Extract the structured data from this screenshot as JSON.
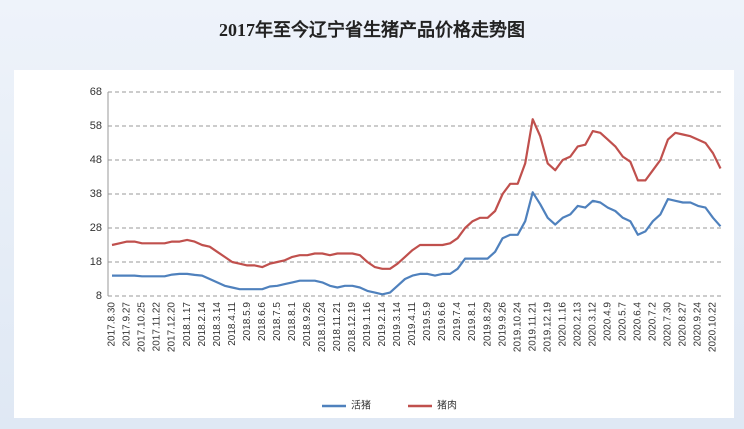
{
  "chart_data": {
    "type": "line",
    "title": "2017年至今辽宁省生猪产品价格走势图",
    "categories": [
      "2017.8.30",
      null,
      "2017.9.27",
      null,
      "2017.10.25",
      null,
      "2017.11.22",
      null,
      "2017.12.20",
      null,
      "2018.1.17",
      null,
      "2018.2.14",
      null,
      "2018.3.14",
      null,
      "2018.4.11",
      null,
      "2018.5.9",
      null,
      "2018.6.6",
      null,
      "2018.7.5",
      null,
      "2018.8.1",
      null,
      "2018.9.26",
      null,
      "2018.10.24",
      null,
      "2018.11.21",
      null,
      "2018.12.19",
      null,
      "2019.1.16",
      null,
      "2019.2.14",
      null,
      "2019.3.14",
      null,
      "2019.4.11",
      null,
      "2019.5.9",
      null,
      "2019.6.6",
      null,
      "2019.7.4",
      null,
      "2019.8.1",
      null,
      "2019.8.29",
      null,
      "2019.9.26",
      null,
      "2019.10.24",
      null,
      "2019.11.21",
      null,
      "2019.12.19",
      null,
      "2020.1.16",
      null,
      "2020.2.13",
      null,
      "2020.3.12",
      null,
      "2020.4.9",
      null,
      "2020.5.7",
      null,
      "2020.6.4",
      null,
      "2020.7.2",
      null,
      "2020.7.30",
      null,
      "2020.8.27",
      null,
      "2020.9.24",
      null,
      "2020.10.22",
      null
    ],
    "series": [
      {
        "name": "活猪",
        "color": "#4f81bd",
        "values": [
          14,
          14,
          14,
          14,
          13.8,
          13.8,
          13.8,
          13.8,
          14.3,
          14.5,
          14.5,
          14.2,
          14,
          13,
          12,
          11,
          10.5,
          10,
          10,
          10,
          10,
          10.8,
          11,
          11.5,
          12,
          12.5,
          12.5,
          12.5,
          12,
          11,
          10.5,
          11,
          11,
          10.5,
          9.5,
          9,
          8.5,
          9,
          11,
          13,
          14,
          14.5,
          14.5,
          14,
          14.5,
          14.5,
          16,
          19,
          19,
          19,
          19,
          21,
          25,
          26,
          26,
          30,
          38.5,
          35,
          31,
          29,
          31,
          32,
          34.5,
          34,
          36,
          35.5,
          34,
          33,
          31,
          30,
          26,
          27,
          30,
          32,
          36.5,
          36,
          35.5,
          35.5,
          34.5,
          34,
          31,
          28.5
        ]
      },
      {
        "name": "猪肉",
        "color": "#c0504d",
        "values": [
          23,
          23.5,
          24,
          24,
          23.5,
          23.5,
          23.5,
          23.5,
          24,
          24,
          24.5,
          24,
          23,
          22.5,
          21,
          19.5,
          18,
          17.5,
          17,
          17,
          16.5,
          17.5,
          18,
          18.5,
          19.5,
          20,
          20,
          20.5,
          20.5,
          20,
          20.5,
          20.5,
          20.5,
          20,
          18,
          16.5,
          16,
          16,
          17.5,
          19.5,
          21.5,
          23,
          23,
          23,
          23,
          23.5,
          25,
          28,
          30,
          31,
          31,
          33,
          38,
          41,
          41,
          47,
          60,
          55,
          47,
          45,
          48,
          49,
          52,
          52.5,
          56.5,
          56,
          54,
          52,
          49,
          47.5,
          42,
          42,
          45,
          48,
          54,
          56,
          55.5,
          55,
          54,
          53,
          50,
          45.5
        ]
      }
    ],
    "ylim": [
      8,
      68
    ],
    "yticks": [
      8,
      18,
      28,
      38,
      48,
      58,
      68
    ],
    "grid": true
  }
}
